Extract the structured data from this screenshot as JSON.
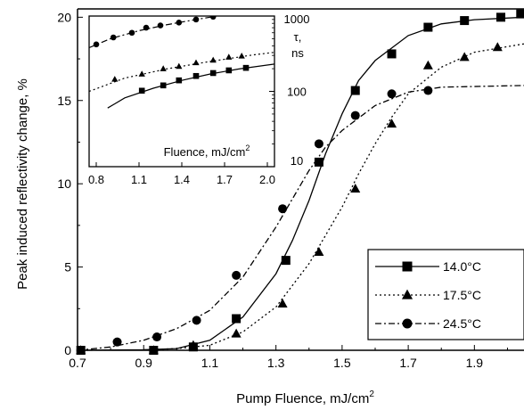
{
  "chart_data": [
    {
      "type": "line",
      "xlabel": "Pump Fluence, mJ/cm",
      "xlabel_sup": "2",
      "ylabel": "Peak induced reflectivity change, %",
      "xlim": [
        0.7,
        2.05
      ],
      "ylim": [
        0,
        20.5
      ],
      "xticks": [
        "0.7",
        "0.9",
        "1.1",
        "1.3",
        "1.5",
        "1.7",
        "1.9"
      ],
      "yticks": [
        "0",
        "5",
        "10",
        "15",
        "20"
      ],
      "legend_position": "bottom-right",
      "grid": false,
      "series": [
        {
          "name": "14.0°C",
          "marker": "square",
          "line": "solid",
          "points": [
            [
              0.71,
              0.0
            ],
            [
              0.93,
              0.0
            ],
            [
              1.05,
              0.2
            ],
            [
              1.18,
              1.9
            ],
            [
              1.33,
              5.4
            ],
            [
              1.43,
              11.3
            ],
            [
              1.54,
              15.6
            ],
            [
              1.65,
              17.8
            ],
            [
              1.76,
              19.4
            ],
            [
              1.87,
              19.8
            ],
            [
              1.98,
              20.0
            ],
            [
              2.04,
              20.2
            ]
          ],
          "curve": [
            [
              0.7,
              0.0
            ],
            [
              0.9,
              0.03
            ],
            [
              1.0,
              0.1
            ],
            [
              1.1,
              0.6
            ],
            [
              1.2,
              2.0
            ],
            [
              1.3,
              4.6
            ],
            [
              1.35,
              6.6
            ],
            [
              1.4,
              9.0
            ],
            [
              1.45,
              11.8
            ],
            [
              1.5,
              14.2
            ],
            [
              1.55,
              16.2
            ],
            [
              1.6,
              17.4
            ],
            [
              1.7,
              18.9
            ],
            [
              1.8,
              19.6
            ],
            [
              1.9,
              19.85
            ],
            [
              2.05,
              20.0
            ]
          ]
        },
        {
          "name": "17.5°C",
          "marker": "triangle",
          "line": "dotted",
          "points": [
            [
              0.71,
              0.0
            ],
            [
              0.93,
              0.0
            ],
            [
              1.05,
              0.3
            ],
            [
              1.18,
              1.0
            ],
            [
              1.32,
              2.8
            ],
            [
              1.43,
              5.9
            ],
            [
              1.54,
              9.7
            ],
            [
              1.65,
              13.6
            ],
            [
              1.76,
              17.1
            ],
            [
              1.87,
              17.6
            ],
            [
              1.97,
              18.2
            ]
          ],
          "curve": [
            [
              0.7,
              0.0
            ],
            [
              0.9,
              0.02
            ],
            [
              1.0,
              0.1
            ],
            [
              1.1,
              0.3
            ],
            [
              1.2,
              1.1
            ],
            [
              1.3,
              2.6
            ],
            [
              1.4,
              5.2
            ],
            [
              1.45,
              6.9
            ],
            [
              1.5,
              8.6
            ],
            [
              1.55,
              10.6
            ],
            [
              1.6,
              12.4
            ],
            [
              1.65,
              14.0
            ],
            [
              1.7,
              15.4
            ],
            [
              1.8,
              17.0
            ],
            [
              1.9,
              17.9
            ],
            [
              2.05,
              18.4
            ]
          ]
        },
        {
          "name": "24.5°C",
          "marker": "circle",
          "line": "dash-dot",
          "points": [
            [
              0.71,
              0.0
            ],
            [
              0.82,
              0.5
            ],
            [
              0.94,
              0.8
            ],
            [
              1.06,
              1.8
            ],
            [
              1.18,
              4.5
            ],
            [
              1.32,
              8.5
            ],
            [
              1.43,
              12.4
            ],
            [
              1.54,
              14.1
            ],
            [
              1.65,
              15.4
            ],
            [
              1.76,
              15.6
            ]
          ],
          "curve": [
            [
              0.7,
              0.0
            ],
            [
              0.8,
              0.2
            ],
            [
              0.9,
              0.6
            ],
            [
              1.0,
              1.3
            ],
            [
              1.1,
              2.4
            ],
            [
              1.2,
              4.4
            ],
            [
              1.3,
              7.4
            ],
            [
              1.4,
              10.8
            ],
            [
              1.45,
              12.2
            ],
            [
              1.5,
              13.2
            ],
            [
              1.6,
              14.7
            ],
            [
              1.7,
              15.5
            ],
            [
              1.8,
              15.8
            ],
            [
              2.05,
              15.9
            ]
          ]
        }
      ]
    },
    {
      "type": "line",
      "xlabel": "Fluence, mJ/cm",
      "xlabel_sup": "2",
      "ylabel_line1": "τ,",
      "ylabel_line2": "ns",
      "yscale": "log",
      "xlim": [
        0.75,
        2.05
      ],
      "ylim": [
        10,
        1000
      ],
      "xticks": [
        "0.8",
        "1.1",
        "1.4",
        "1.7",
        "2.0"
      ],
      "yticks": [
        "10",
        "100",
        "1000"
      ],
      "series": [
        {
          "marker": "circle",
          "line": "dash-dot",
          "points": [
            [
              0.8,
              420
            ],
            [
              0.92,
              520
            ],
            [
              1.05,
              600
            ],
            [
              1.15,
              700
            ],
            [
              1.25,
              750
            ],
            [
              1.38,
              820
            ],
            [
              1.5,
              900
            ],
            [
              1.62,
              980
            ]
          ],
          "curve": [
            [
              0.75,
              380
            ],
            [
              0.9,
              500
            ],
            [
              1.1,
              640
            ],
            [
              1.3,
              770
            ],
            [
              1.5,
              900
            ],
            [
              1.65,
              1000
            ]
          ]
        },
        {
          "marker": "triangle",
          "line": "dotted",
          "points": [
            [
              0.93,
              145
            ],
            [
              1.12,
              170
            ],
            [
              1.27,
              200
            ],
            [
              1.38,
              215
            ],
            [
              1.5,
              240
            ],
            [
              1.62,
              260
            ],
            [
              1.73,
              285
            ],
            [
              1.82,
              295
            ]
          ],
          "curve": [
            [
              0.75,
              100
            ],
            [
              1.0,
              150
            ],
            [
              1.3,
              200
            ],
            [
              1.6,
              250
            ],
            [
              1.9,
              305
            ],
            [
              2.05,
              330
            ]
          ]
        },
        {
          "marker": "square",
          "line": "solid",
          "points": [
            [
              1.12,
              102
            ],
            [
              1.27,
              120
            ],
            [
              1.38,
              140
            ],
            [
              1.5,
              160
            ],
            [
              1.62,
              175
            ],
            [
              1.73,
              190
            ],
            [
              1.85,
              205
            ]
          ],
          "curve": [
            [
              0.88,
              60
            ],
            [
              1.0,
              82
            ],
            [
              1.2,
              110
            ],
            [
              1.4,
              140
            ],
            [
              1.6,
              170
            ],
            [
              1.8,
              198
            ],
            [
              2.05,
              230
            ]
          ]
        }
      ]
    }
  ]
}
